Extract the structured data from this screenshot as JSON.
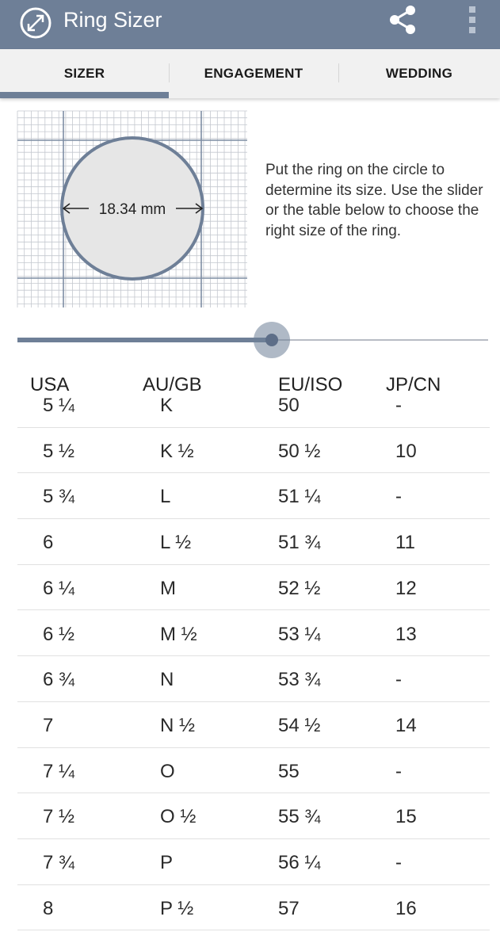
{
  "app": {
    "title": "Ring Sizer",
    "logo_icon": "ring-gauge-icon",
    "share_icon": "share-icon",
    "more_icon": "more-vert-icon"
  },
  "tabs": [
    {
      "label": "SIZER",
      "active": true
    },
    {
      "label": "ENGAGEMENT",
      "active": false
    },
    {
      "label": "WEDDING",
      "active": false
    }
  ],
  "sizer": {
    "diameter_label": "18.34 mm",
    "instructions": "Put the ring on the circle to determine its size. Use the slider or the table below to choose the right size of the ring."
  },
  "slider": {
    "value_fraction": 0.54
  },
  "table": {
    "headers": [
      "USA",
      "AU/GB",
      "EU/ISO",
      "JP/CN"
    ],
    "rows": [
      [
        "5 ¼",
        "K",
        "50",
        "-"
      ],
      [
        "5 ½",
        "K ½",
        "50 ½",
        "10"
      ],
      [
        "5 ¾",
        "L",
        "51 ¼",
        "-"
      ],
      [
        "6",
        "L ½",
        "51 ¾",
        "11"
      ],
      [
        "6 ¼",
        "M",
        "52 ½",
        "12"
      ],
      [
        "6 ½",
        "M ½",
        "53 ¼",
        "13"
      ],
      [
        "6 ¾",
        "N",
        "53 ¾",
        "-"
      ],
      [
        "7",
        "N ½",
        "54 ½",
        "14"
      ],
      [
        "7 ¼",
        "O",
        "55",
        "-"
      ],
      [
        "7 ½",
        "O ½",
        "55 ¾",
        "15"
      ],
      [
        "7 ¾",
        "P",
        "56 ¼",
        "-"
      ],
      [
        "8",
        "P ½",
        "57",
        "16"
      ]
    ]
  },
  "colors": {
    "primary": "#6e7f97",
    "circle_fill": "#e6e6e6",
    "circle_stroke": "#6e7f97",
    "grid_minor": "#c4c8cf",
    "grid_major": "#7e8da3"
  }
}
